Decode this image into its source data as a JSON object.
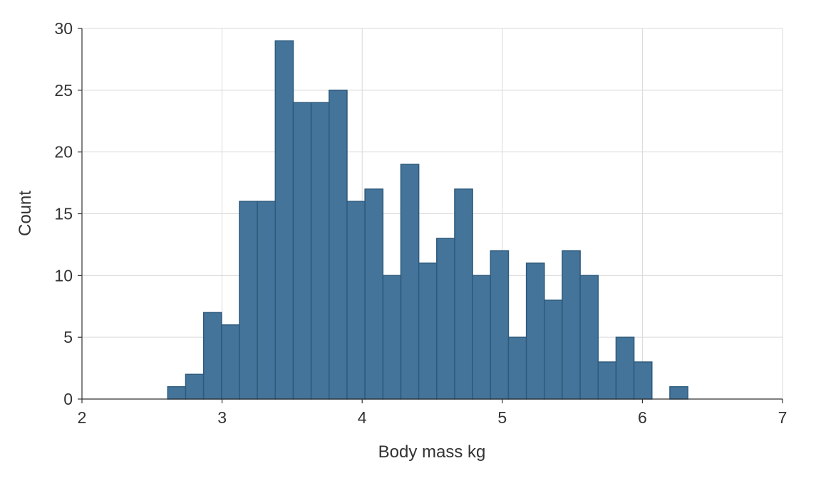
{
  "chart_data": {
    "type": "bar",
    "subtype": "histogram",
    "xlabel": "Body mass kg",
    "ylabel": "Count",
    "xlim": [
      2,
      7
    ],
    "ylim": [
      0,
      30
    ],
    "x_ticks": [
      2,
      3,
      4,
      5,
      6,
      7
    ],
    "y_ticks": [
      0,
      5,
      10,
      15,
      20,
      25,
      30
    ],
    "grid": true,
    "bar_color": "#44749a",
    "bin_width": 0.128,
    "bin_start": 2.1,
    "counts": [
      0,
      0,
      0,
      0,
      1,
      2,
      7,
      6,
      16,
      16,
      29,
      24,
      24,
      25,
      16,
      17,
      10,
      19,
      11,
      13,
      17,
      10,
      12,
      5,
      11,
      8,
      12,
      10,
      3,
      5,
      3,
      0,
      1,
      0,
      0,
      0,
      0,
      0,
      0
    ]
  }
}
